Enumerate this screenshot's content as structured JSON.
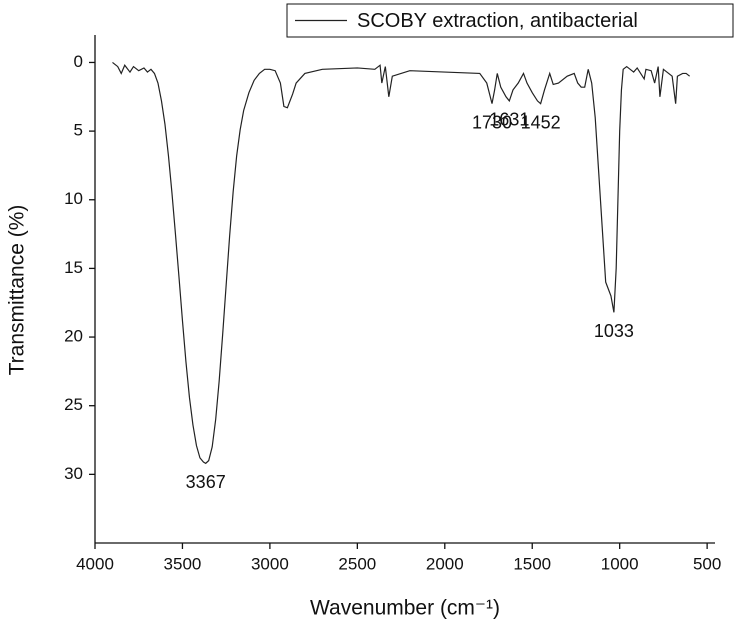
{
  "chart_data": {
    "type": "line",
    "xlabel": "Wavenumber (cm⁻¹)",
    "ylabel": "Transmittance (%)",
    "xlim": [
      4000,
      455
    ],
    "xticks": [
      4000,
      3500,
      3000,
      2500,
      2000,
      1500,
      1000,
      500
    ],
    "ylim": [
      -2,
      35
    ],
    "yticks": [
      0,
      5,
      10,
      15,
      20,
      25,
      30
    ],
    "y_inverted": true,
    "legend": "upper right",
    "annotations": [
      3367,
      1730,
      1631,
      1452,
      1033
    ],
    "x": [
      3900,
      3870,
      3850,
      3830,
      3800,
      3780,
      3750,
      3720,
      3700,
      3680,
      3660,
      3640,
      3620,
      3600,
      3580,
      3560,
      3540,
      3520,
      3500,
      3480,
      3460,
      3440,
      3420,
      3400,
      3380,
      3367,
      3350,
      3330,
      3310,
      3290,
      3270,
      3250,
      3230,
      3210,
      3190,
      3170,
      3150,
      3120,
      3090,
      3060,
      3030,
      3000,
      2970,
      2940,
      2920,
      2900,
      2870,
      2850,
      2800,
      2700,
      2500,
      2400,
      2370,
      2360,
      2340,
      2320,
      2300,
      2200,
      2000,
      1800,
      1760,
      1740,
      1730,
      1715,
      1700,
      1680,
      1650,
      1631,
      1610,
      1580,
      1550,
      1530,
      1500,
      1470,
      1452,
      1430,
      1400,
      1380,
      1350,
      1300,
      1260,
      1240,
      1220,
      1200,
      1180,
      1160,
      1140,
      1120,
      1100,
      1080,
      1065,
      1050,
      1033,
      1020,
      1010,
      1000,
      990,
      980,
      960,
      920,
      900,
      860,
      850,
      820,
      800,
      780,
      770,
      750,
      720,
      700,
      680,
      670,
      640,
      620,
      600
    ],
    "series": [
      {
        "name": "SCOBY extraction, antibacterial",
        "color": "#222222",
        "values": [
          0.0,
          0.3,
          0.8,
          0.2,
          0.7,
          0.3,
          0.6,
          0.4,
          0.7,
          0.5,
          0.8,
          1.5,
          2.8,
          4.5,
          6.8,
          9.5,
          12.5,
          15.6,
          18.8,
          21.8,
          24.4,
          26.4,
          27.9,
          28.8,
          29.1,
          29.2,
          29.0,
          28.0,
          26.0,
          23.2,
          19.8,
          16.2,
          12.6,
          9.4,
          6.8,
          4.9,
          3.5,
          2.2,
          1.3,
          0.8,
          0.5,
          0.5,
          0.6,
          1.5,
          3.2,
          3.3,
          2.3,
          1.5,
          0.8,
          0.5,
          0.4,
          0.5,
          0.2,
          1.5,
          0.3,
          2.5,
          1.0,
          0.6,
          0.7,
          0.8,
          1.5,
          2.5,
          3.0,
          2.0,
          0.8,
          1.8,
          2.5,
          2.8,
          2.0,
          1.5,
          0.8,
          1.5,
          2.2,
          2.8,
          3.0,
          2.0,
          0.8,
          1.6,
          1.5,
          1.0,
          0.8,
          1.5,
          1.8,
          1.8,
          0.5,
          1.5,
          4.0,
          8.0,
          12.0,
          16.0,
          16.5,
          17.0,
          18.2,
          15.0,
          10.0,
          5.0,
          2.0,
          0.5,
          0.3,
          0.7,
          0.4,
          1.2,
          0.5,
          0.6,
          1.5,
          0.3,
          2.5,
          0.5,
          0.8,
          1.0,
          3.0,
          1.0,
          0.8,
          0.8,
          1.0
        ]
      }
    ]
  }
}
